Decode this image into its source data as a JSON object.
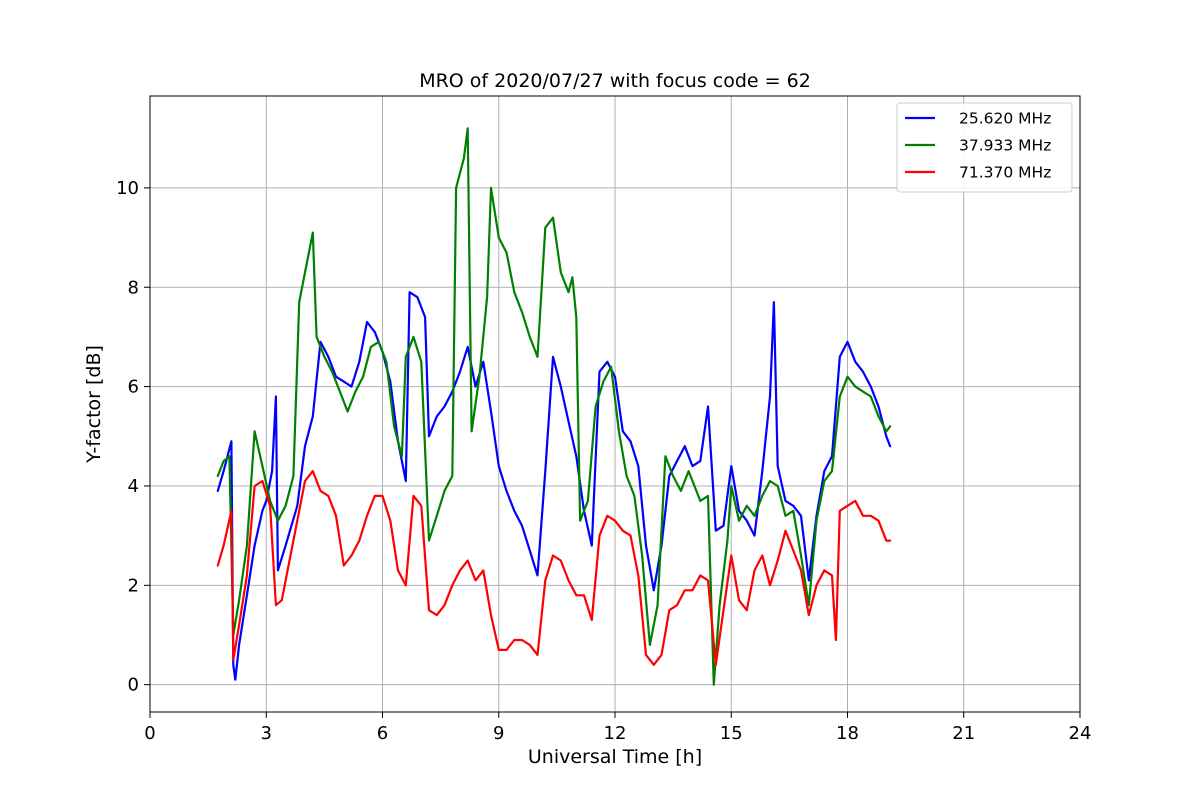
{
  "chart_data": {
    "type": "line",
    "title": "MRO of 2020/07/27 with focus code = 62",
    "xlabel": "Universal Time [h]",
    "ylabel": "Y-factor [dB]",
    "xlim": [
      0,
      24
    ],
    "ylim": [
      -0.55,
      11.85
    ],
    "xticks": [
      0,
      3,
      6,
      9,
      12,
      15,
      18,
      21,
      24
    ],
    "yticks": [
      0,
      2,
      4,
      6,
      8,
      10
    ],
    "grid": true,
    "legend_position": "top-right",
    "series": [
      {
        "name": "25.620 MHz",
        "color": "#0000ff",
        "points": [
          [
            1.75,
            3.9
          ],
          [
            1.9,
            4.3
          ],
          [
            2.0,
            4.6
          ],
          [
            2.1,
            4.9
          ],
          [
            2.15,
            0.4
          ],
          [
            2.2,
            0.1
          ],
          [
            2.3,
            0.8
          ],
          [
            2.5,
            1.8
          ],
          [
            2.7,
            2.8
          ],
          [
            2.9,
            3.5
          ],
          [
            3.0,
            3.7
          ],
          [
            3.15,
            4.3
          ],
          [
            3.25,
            5.8
          ],
          [
            3.3,
            2.3
          ],
          [
            3.5,
            2.8
          ],
          [
            3.8,
            3.6
          ],
          [
            4.0,
            4.8
          ],
          [
            4.2,
            5.4
          ],
          [
            4.4,
            6.9
          ],
          [
            4.6,
            6.6
          ],
          [
            4.8,
            6.2
          ],
          [
            5.0,
            6.1
          ],
          [
            5.2,
            6.0
          ],
          [
            5.4,
            6.5
          ],
          [
            5.6,
            7.3
          ],
          [
            5.8,
            7.1
          ],
          [
            6.0,
            6.7
          ],
          [
            6.2,
            6.1
          ],
          [
            6.4,
            4.9
          ],
          [
            6.6,
            4.1
          ],
          [
            6.7,
            7.9
          ],
          [
            6.9,
            7.8
          ],
          [
            7.1,
            7.4
          ],
          [
            7.2,
            5.0
          ],
          [
            7.4,
            5.4
          ],
          [
            7.6,
            5.6
          ],
          [
            7.8,
            5.9
          ],
          [
            8.0,
            6.3
          ],
          [
            8.2,
            6.8
          ],
          [
            8.4,
            6.0
          ],
          [
            8.6,
            6.5
          ],
          [
            8.8,
            5.5
          ],
          [
            9.0,
            4.4
          ],
          [
            9.2,
            3.9
          ],
          [
            9.4,
            3.5
          ],
          [
            9.6,
            3.2
          ],
          [
            9.8,
            2.7
          ],
          [
            10.0,
            2.2
          ],
          [
            10.2,
            4.3
          ],
          [
            10.4,
            6.6
          ],
          [
            10.6,
            6.0
          ],
          [
            10.8,
            5.3
          ],
          [
            11.0,
            4.6
          ],
          [
            11.2,
            3.5
          ],
          [
            11.4,
            2.8
          ],
          [
            11.6,
            6.3
          ],
          [
            11.8,
            6.5
          ],
          [
            12.0,
            6.2
          ],
          [
            12.2,
            5.1
          ],
          [
            12.4,
            4.9
          ],
          [
            12.6,
            4.4
          ],
          [
            12.8,
            2.8
          ],
          [
            13.0,
            1.9
          ],
          [
            13.2,
            2.8
          ],
          [
            13.4,
            4.2
          ],
          [
            13.6,
            4.5
          ],
          [
            13.8,
            4.8
          ],
          [
            14.0,
            4.4
          ],
          [
            14.2,
            4.5
          ],
          [
            14.4,
            5.6
          ],
          [
            14.6,
            3.1
          ],
          [
            14.8,
            3.2
          ],
          [
            15.0,
            4.4
          ],
          [
            15.2,
            3.5
          ],
          [
            15.4,
            3.3
          ],
          [
            15.6,
            3.0
          ],
          [
            15.8,
            4.3
          ],
          [
            16.0,
            5.8
          ],
          [
            16.1,
            7.7
          ],
          [
            16.2,
            4.4
          ],
          [
            16.4,
            3.7
          ],
          [
            16.6,
            3.6
          ],
          [
            16.8,
            3.4
          ],
          [
            17.0,
            2.1
          ],
          [
            17.2,
            3.4
          ],
          [
            17.4,
            4.3
          ],
          [
            17.6,
            4.6
          ],
          [
            17.8,
            6.6
          ],
          [
            18.0,
            6.9
          ],
          [
            18.2,
            6.5
          ],
          [
            18.4,
            6.3
          ],
          [
            18.6,
            6.0
          ],
          [
            18.8,
            5.6
          ],
          [
            19.0,
            5.0
          ],
          [
            19.1,
            4.8
          ]
        ]
      },
      {
        "name": "37.933 MHz",
        "color": "#008000",
        "points": [
          [
            1.75,
            4.2
          ],
          [
            1.9,
            4.5
          ],
          [
            2.05,
            4.6
          ],
          [
            2.15,
            1.0
          ],
          [
            2.3,
            1.7
          ],
          [
            2.5,
            2.8
          ],
          [
            2.7,
            5.1
          ],
          [
            2.9,
            4.4
          ],
          [
            3.1,
            3.7
          ],
          [
            3.3,
            3.3
          ],
          [
            3.5,
            3.6
          ],
          [
            3.7,
            4.2
          ],
          [
            3.85,
            7.7
          ],
          [
            4.0,
            8.3
          ],
          [
            4.2,
            9.1
          ],
          [
            4.3,
            7.0
          ],
          [
            4.5,
            6.6
          ],
          [
            4.7,
            6.3
          ],
          [
            4.9,
            5.9
          ],
          [
            5.1,
            5.5
          ],
          [
            5.3,
            5.9
          ],
          [
            5.5,
            6.2
          ],
          [
            5.7,
            6.8
          ],
          [
            5.9,
            6.9
          ],
          [
            6.1,
            6.5
          ],
          [
            6.3,
            5.2
          ],
          [
            6.5,
            4.6
          ],
          [
            6.6,
            6.6
          ],
          [
            6.8,
            7.0
          ],
          [
            7.0,
            6.5
          ],
          [
            7.2,
            2.9
          ],
          [
            7.4,
            3.4
          ],
          [
            7.6,
            3.9
          ],
          [
            7.8,
            4.2
          ],
          [
            7.9,
            10.0
          ],
          [
            8.1,
            10.6
          ],
          [
            8.2,
            11.2
          ],
          [
            8.3,
            5.1
          ],
          [
            8.5,
            6.2
          ],
          [
            8.7,
            7.8
          ],
          [
            8.8,
            10.0
          ],
          [
            9.0,
            9.0
          ],
          [
            9.2,
            8.7
          ],
          [
            9.4,
            7.9
          ],
          [
            9.6,
            7.5
          ],
          [
            9.8,
            7.0
          ],
          [
            10.0,
            6.6
          ],
          [
            10.2,
            9.2
          ],
          [
            10.4,
            9.4
          ],
          [
            10.6,
            8.3
          ],
          [
            10.8,
            7.9
          ],
          [
            10.9,
            8.2
          ],
          [
            11.0,
            7.4
          ],
          [
            11.1,
            3.3
          ],
          [
            11.3,
            3.7
          ],
          [
            11.5,
            5.6
          ],
          [
            11.7,
            6.1
          ],
          [
            11.9,
            6.4
          ],
          [
            12.1,
            5.1
          ],
          [
            12.3,
            4.2
          ],
          [
            12.5,
            3.8
          ],
          [
            12.7,
            2.6
          ],
          [
            12.9,
            0.8
          ],
          [
            13.1,
            1.6
          ],
          [
            13.3,
            4.6
          ],
          [
            13.5,
            4.2
          ],
          [
            13.7,
            3.9
          ],
          [
            13.9,
            4.3
          ],
          [
            14.2,
            3.7
          ],
          [
            14.4,
            3.8
          ],
          [
            14.55,
            0.0
          ],
          [
            14.7,
            1.6
          ],
          [
            14.9,
            2.9
          ],
          [
            15.0,
            4.0
          ],
          [
            15.2,
            3.3
          ],
          [
            15.4,
            3.6
          ],
          [
            15.6,
            3.4
          ],
          [
            15.8,
            3.8
          ],
          [
            16.0,
            4.1
          ],
          [
            16.2,
            4.0
          ],
          [
            16.4,
            3.4
          ],
          [
            16.6,
            3.5
          ],
          [
            16.8,
            2.6
          ],
          [
            17.0,
            1.6
          ],
          [
            17.2,
            3.3
          ],
          [
            17.4,
            4.1
          ],
          [
            17.6,
            4.3
          ],
          [
            17.8,
            5.8
          ],
          [
            18.0,
            6.2
          ],
          [
            18.2,
            6.0
          ],
          [
            18.4,
            5.9
          ],
          [
            18.6,
            5.8
          ],
          [
            18.8,
            5.4
          ],
          [
            19.0,
            5.1
          ],
          [
            19.1,
            5.2
          ]
        ]
      },
      {
        "name": "71.370 MHz",
        "color": "#ff0000",
        "points": [
          [
            1.75,
            2.4
          ],
          [
            1.9,
            2.8
          ],
          [
            2.1,
            3.5
          ],
          [
            2.15,
            0.5
          ],
          [
            2.3,
            1.2
          ],
          [
            2.5,
            2.2
          ],
          [
            2.7,
            4.0
          ],
          [
            2.9,
            4.1
          ],
          [
            3.1,
            3.6
          ],
          [
            3.25,
            1.6
          ],
          [
            3.4,
            1.7
          ],
          [
            3.6,
            2.5
          ],
          [
            3.8,
            3.3
          ],
          [
            4.0,
            4.1
          ],
          [
            4.2,
            4.3
          ],
          [
            4.4,
            3.9
          ],
          [
            4.6,
            3.8
          ],
          [
            4.8,
            3.4
          ],
          [
            5.0,
            2.4
          ],
          [
            5.2,
            2.6
          ],
          [
            5.4,
            2.9
          ],
          [
            5.6,
            3.4
          ],
          [
            5.8,
            3.8
          ],
          [
            6.0,
            3.8
          ],
          [
            6.2,
            3.3
          ],
          [
            6.4,
            2.3
          ],
          [
            6.6,
            2.0
          ],
          [
            6.8,
            3.8
          ],
          [
            7.0,
            3.6
          ],
          [
            7.2,
            1.5
          ],
          [
            7.4,
            1.4
          ],
          [
            7.6,
            1.6
          ],
          [
            7.8,
            2.0
          ],
          [
            8.0,
            2.3
          ],
          [
            8.2,
            2.5
          ],
          [
            8.4,
            2.1
          ],
          [
            8.6,
            2.3
          ],
          [
            8.8,
            1.4
          ],
          [
            9.0,
            0.7
          ],
          [
            9.2,
            0.7
          ],
          [
            9.4,
            0.9
          ],
          [
            9.6,
            0.9
          ],
          [
            9.8,
            0.8
          ],
          [
            10.0,
            0.6
          ],
          [
            10.2,
            2.1
          ],
          [
            10.4,
            2.6
          ],
          [
            10.6,
            2.5
          ],
          [
            10.8,
            2.1
          ],
          [
            11.0,
            1.8
          ],
          [
            11.2,
            1.8
          ],
          [
            11.4,
            1.3
          ],
          [
            11.6,
            3.0
          ],
          [
            11.8,
            3.4
          ],
          [
            12.0,
            3.3
          ],
          [
            12.2,
            3.1
          ],
          [
            12.4,
            3.0
          ],
          [
            12.6,
            2.2
          ],
          [
            12.8,
            0.6
          ],
          [
            13.0,
            0.4
          ],
          [
            13.2,
            0.6
          ],
          [
            13.4,
            1.5
          ],
          [
            13.6,
            1.6
          ],
          [
            13.8,
            1.9
          ],
          [
            14.0,
            1.9
          ],
          [
            14.2,
            2.2
          ],
          [
            14.4,
            2.1
          ],
          [
            14.6,
            0.4
          ],
          [
            14.8,
            1.5
          ],
          [
            15.0,
            2.6
          ],
          [
            15.2,
            1.7
          ],
          [
            15.4,
            1.5
          ],
          [
            15.6,
            2.3
          ],
          [
            15.8,
            2.6
          ],
          [
            16.0,
            2.0
          ],
          [
            16.2,
            2.5
          ],
          [
            16.4,
            3.1
          ],
          [
            16.6,
            2.7
          ],
          [
            16.8,
            2.3
          ],
          [
            17.0,
            1.4
          ],
          [
            17.2,
            2.0
          ],
          [
            17.4,
            2.3
          ],
          [
            17.6,
            2.2
          ],
          [
            17.7,
            0.9
          ],
          [
            17.8,
            3.5
          ],
          [
            18.0,
            3.6
          ],
          [
            18.2,
            3.7
          ],
          [
            18.4,
            3.4
          ],
          [
            18.6,
            3.4
          ],
          [
            18.8,
            3.3
          ],
          [
            19.0,
            2.9
          ],
          [
            19.1,
            2.9
          ]
        ]
      }
    ]
  }
}
